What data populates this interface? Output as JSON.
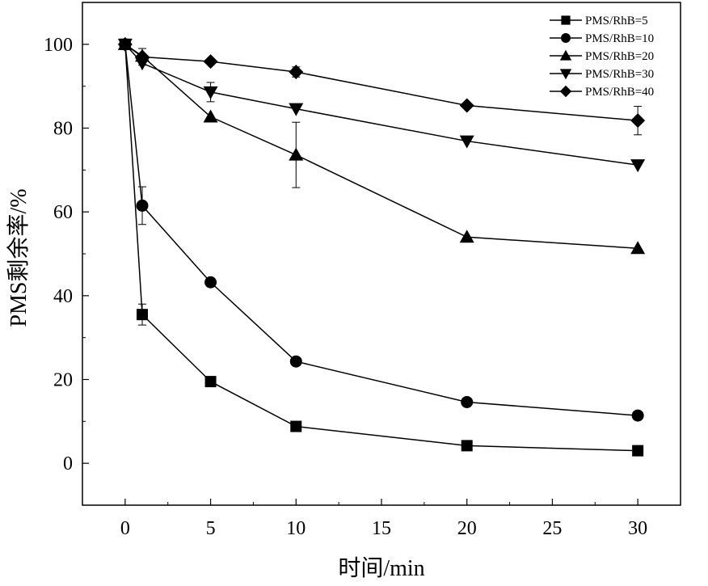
{
  "chart_data": {
    "type": "line",
    "title": "",
    "xlabel": "时间/min",
    "ylabel": "PMS剩余率/%",
    "xlim": [
      -2.5,
      32.5
    ],
    "ylim": [
      -10,
      110
    ],
    "xticks": [
      0,
      5,
      10,
      15,
      20,
      25,
      30
    ],
    "yticks": [
      0,
      20,
      40,
      60,
      80,
      100
    ],
    "grid": false,
    "legend_position": "top-right",
    "x": [
      0,
      1,
      5,
      10,
      20,
      30
    ],
    "series": [
      {
        "name": "PMS/RhB=5",
        "marker": "square",
        "values": [
          100,
          35.5,
          19.5,
          8.8,
          4.2,
          3.0
        ],
        "errors": [
          [
            1,
            2.5
          ]
        ]
      },
      {
        "name": "PMS/RhB=10",
        "marker": "circle",
        "values": [
          100,
          61.5,
          43.2,
          24.3,
          14.6,
          11.4
        ],
        "errors": [
          [
            1,
            4.5
          ]
        ]
      },
      {
        "name": "PMS/RhB=20",
        "marker": "triangle-up",
        "values": [
          100,
          97.2,
          82.7,
          73.6,
          54.0,
          51.3
        ],
        "errors": [
          [
            10,
            7.8
          ]
        ]
      },
      {
        "name": "PMS/RhB=30",
        "marker": "triangle-down",
        "values": [
          100,
          95.5,
          88.6,
          84.6,
          76.9,
          71.2
        ],
        "errors": [
          [
            5,
            2.3
          ]
        ]
      },
      {
        "name": "PMS/RhB=40",
        "marker": "diamond",
        "values": [
          100,
          97.0,
          95.9,
          93.4,
          85.4,
          81.8
        ],
        "errors": [
          [
            1,
            2.0
          ],
          [
            10,
            1.2
          ],
          [
            30,
            3.4
          ]
        ]
      }
    ]
  }
}
